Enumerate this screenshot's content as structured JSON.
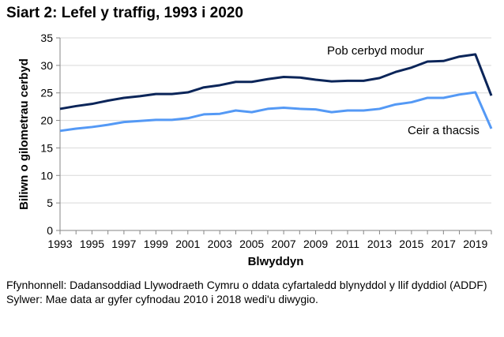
{
  "chart_data": {
    "type": "line",
    "title": "Siart 2: Lefel y traffig, 1993 i 2020",
    "xlabel": "Blwyddyn",
    "ylabel": "Biliwn o gilometrau cerbyd",
    "ylim": [
      0,
      35
    ],
    "yticks": [
      "0",
      "5",
      "10",
      "15",
      "20",
      "25",
      "30",
      "35"
    ],
    "xticks": [
      "1993",
      "1995",
      "1997",
      "1999",
      "2001",
      "2003",
      "2005",
      "2007",
      "2009",
      "2011",
      "2013",
      "2015",
      "2017",
      "2019"
    ],
    "grid": true,
    "x": [
      1993,
      1994,
      1995,
      1996,
      1997,
      1998,
      1999,
      2000,
      2001,
      2002,
      2003,
      2004,
      2005,
      2006,
      2007,
      2008,
      2009,
      2010,
      2011,
      2012,
      2013,
      2014,
      2015,
      2016,
      2017,
      2018,
      2019,
      2020
    ],
    "series": [
      {
        "name": "Pob cerbyd modur",
        "color": "#0b2559",
        "values": [
          22.1,
          22.6,
          23.0,
          23.6,
          24.1,
          24.4,
          24.8,
          24.8,
          25.1,
          26.0,
          26.4,
          27.0,
          27.0,
          27.5,
          27.9,
          27.8,
          27.4,
          27.1,
          27.2,
          27.2,
          27.7,
          28.8,
          29.6,
          30.7,
          30.8,
          31.6,
          32.0,
          24.5
        ]
      },
      {
        "name": "Ceir a thacsis",
        "color": "#5499f5",
        "values": [
          18.1,
          18.5,
          18.8,
          19.2,
          19.7,
          19.9,
          20.1,
          20.1,
          20.4,
          21.1,
          21.2,
          21.8,
          21.5,
          22.1,
          22.3,
          22.1,
          22.0,
          21.5,
          21.8,
          21.8,
          22.1,
          22.9,
          23.3,
          24.1,
          24.1,
          24.7,
          25.1,
          18.5
        ]
      }
    ]
  },
  "notes": {
    "source": "Ffynhonnell: Dadansoddiad Llywodraeth Cymru o ddata cyfartaledd blynyddol y llif dyddiol (ADDF)",
    "note": "Sylwer: Mae data ar gyfer cyfnodau 2010 i 2018 wedi'u diwygio."
  }
}
